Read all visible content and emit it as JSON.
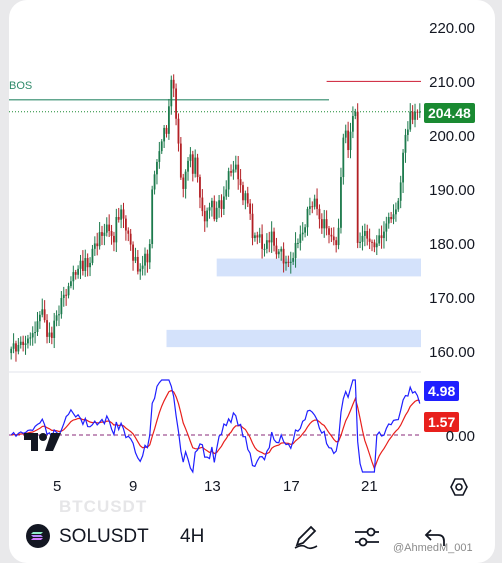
{
  "symbol": {
    "name": "SOLUSDT",
    "interval": "4H",
    "watermark": "BTCUSDT"
  },
  "price": {
    "current_label": "204.48",
    "current_color": "#1a8a32"
  },
  "bos_label": "BOS",
  "indicator": {
    "fast_label": "4.98",
    "fast_color": "#1f1fff",
    "slow_label": "1.57",
    "slow_color": "#e8201c",
    "zero_label": "0.00"
  },
  "overlay_text": "@AhmedM_001",
  "colors": {
    "bull": "#1c7a4c",
    "bear": "#b32025",
    "zone": "#d4e2fb",
    "bos": "#2f8a6a",
    "high": "#d2344a"
  },
  "chart_data": {
    "type": "candlestick",
    "price_axis_ticks": [
      "220.00",
      "210.00",
      "200.00",
      "190.00",
      "180.00",
      "170.00",
      "160.00"
    ],
    "time_axis_ticks": [
      "5",
      "9",
      "13",
      "17",
      "21"
    ],
    "ylim": [
      156,
      225
    ],
    "x": [
      0,
      1,
      2,
      3,
      4,
      5,
      6,
      7,
      8,
      9,
      10,
      11,
      12,
      13,
      14,
      15,
      16,
      17,
      18,
      19,
      20,
      21,
      22,
      23,
      24,
      25,
      26,
      27,
      28,
      29,
      30,
      31,
      32,
      33,
      34,
      35,
      36,
      37,
      38,
      39,
      40,
      41,
      42,
      43,
      44,
      45,
      46,
      47,
      48,
      49,
      50,
      51,
      52,
      53,
      54,
      55,
      56,
      57,
      58,
      59,
      60,
      61,
      62,
      63,
      64,
      65,
      66,
      67,
      68,
      69,
      70,
      71,
      72,
      73,
      74,
      75,
      76,
      77,
      78,
      79,
      80,
      81,
      82,
      83,
      84,
      85,
      86,
      87,
      88,
      89,
      90,
      91,
      92,
      93,
      94,
      95,
      96,
      97,
      98,
      99,
      100,
      101,
      102,
      103,
      104,
      105,
      106,
      107,
      108,
      109,
      110,
      111,
      112,
      113,
      114,
      115,
      116,
      117,
      118,
      119,
      120,
      121,
      122,
      123,
      124,
      125,
      126,
      127,
      128,
      129,
      130,
      131,
      132,
      133,
      134,
      135,
      136,
      137,
      138,
      139,
      140,
      141,
      142,
      143,
      144,
      145,
      146,
      147,
      148,
      149,
      150,
      151,
      152,
      153,
      154,
      155,
      156,
      157,
      158,
      159,
      160,
      161,
      162,
      163,
      164,
      165,
      166,
      167,
      168,
      169,
      170,
      171
    ],
    "close": [
      160.6,
      161.6,
      160.1,
      161.3,
      161.9,
      161.3,
      161.6,
      162.5,
      162.7,
      163.5,
      163.7,
      165.7,
      166.9,
      167.9,
      165.9,
      162.8,
      163.6,
      162.6,
      165.8,
      166.8,
      167.0,
      170.0,
      170.6,
      170.5,
      172.2,
      173.1,
      174.8,
      174.3,
      175.4,
      176.9,
      175.0,
      177.4,
      175.7,
      176.5,
      179.1,
      180.1,
      179.6,
      182.2,
      181.5,
      182.1,
      183.6,
      182.4,
      181.5,
      180.3,
      185.0,
      184.5,
      186.4,
      184.7,
      182.5,
      181.9,
      179.9,
      176.9,
      177.6,
      174.9,
      175.4,
      176.0,
      178.2,
      176.6,
      180.0,
      190.1,
      192.9,
      195.2,
      197.2,
      199.0,
      201.5,
      200.4,
      205.5,
      210.4,
      208.8,
      203.2,
      198.6,
      192.3,
      190.2,
      193.4,
      195.4,
      196.6,
      193.0,
      196.0,
      192.4,
      188.6,
      186.1,
      184.2,
      186.2,
      186.8,
      188.0,
      184.6,
      186.7,
      188.1,
      186.5,
      188.8,
      190.1,
      193.5,
      193.2,
      193.8,
      194.7,
      192.0,
      190.9,
      188.1,
      189.4,
      187.5,
      185.6,
      181.1,
      181.6,
      181.2,
      181.8,
      179.1,
      179.1,
      180.7,
      180.3,
      182.3,
      179.7,
      178.1,
      178.6,
      179.1,
      176.4,
      176.7,
      176.5,
      176.7,
      177.4,
      180.2,
      180.2,
      181.8,
      182.1,
      183.1,
      186.5,
      187.0,
      186.9,
      188.4,
      186.5,
      184.6,
      182.9,
      184.6,
      182.9,
      181.7,
      181.4,
      180.7,
      179.8,
      183.0,
      192.4,
      199.7,
      201.0,
      197.4,
      200.8,
      203.7,
      204.5,
      180.2,
      180.4,
      181.5,
      182.4,
      181.0,
      180.4,
      180.3,
      179.4,
      180.1,
      181.6,
      181.1,
      182.3,
      183.8,
      185.0,
      184.6,
      185.5,
      186.4,
      188.0,
      191.4,
      196.9,
      200.2,
      201.2,
      204.5,
      203.0,
      204.5,
      204.4,
      204.5
    ],
    "macd_fast": "4.98",
    "macd_slow": "1.57",
    "levels": {
      "bos": 206.7,
      "high": 210.1,
      "current": 204.48
    },
    "demand_zones": [
      [
        174,
        177.3
      ],
      [
        160.9,
        164.1
      ]
    ]
  }
}
